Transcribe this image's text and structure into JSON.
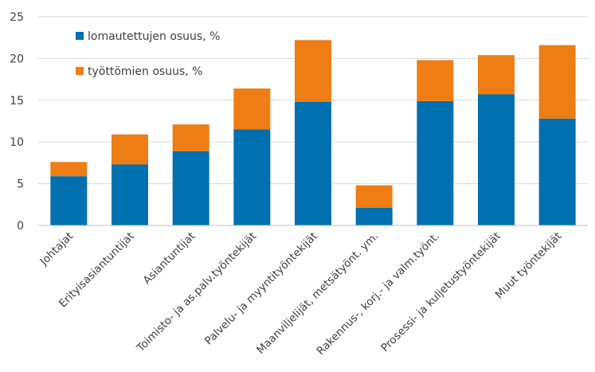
{
  "chart_data": {
    "type": "bar",
    "stacked": true,
    "title": "",
    "xlabel": "",
    "ylabel": "",
    "ylim": [
      0,
      25
    ],
    "yticks": [
      0,
      5,
      10,
      15,
      20,
      25
    ],
    "grid": true,
    "legend_position": "top-left",
    "categories": [
      "Johtajat",
      "Erityisasiantuntijat",
      "Asiantuntijat",
      "Toimisto- ja as.palv.työntekijät",
      "Palvelu- ja myyntityöntekijät",
      "Maanviljelijät, metsätyönt. ym.",
      "Rakennus-, korj.- ja valm.työnt.",
      "Prosessi- ja kuljetustyöntekijät",
      "Muut työntekijät"
    ],
    "series": [
      {
        "name": "lomautettujen osuus, %",
        "color": "#0070b0",
        "values": [
          5.9,
          7.3,
          8.9,
          11.5,
          14.8,
          2.1,
          14.9,
          15.7,
          12.8
        ]
      },
      {
        "name": "työttömien osuus, %",
        "color": "#ed7d14",
        "values": [
          1.7,
          3.6,
          3.2,
          4.9,
          7.4,
          2.7,
          4.9,
          4.7,
          8.8
        ]
      }
    ]
  }
}
